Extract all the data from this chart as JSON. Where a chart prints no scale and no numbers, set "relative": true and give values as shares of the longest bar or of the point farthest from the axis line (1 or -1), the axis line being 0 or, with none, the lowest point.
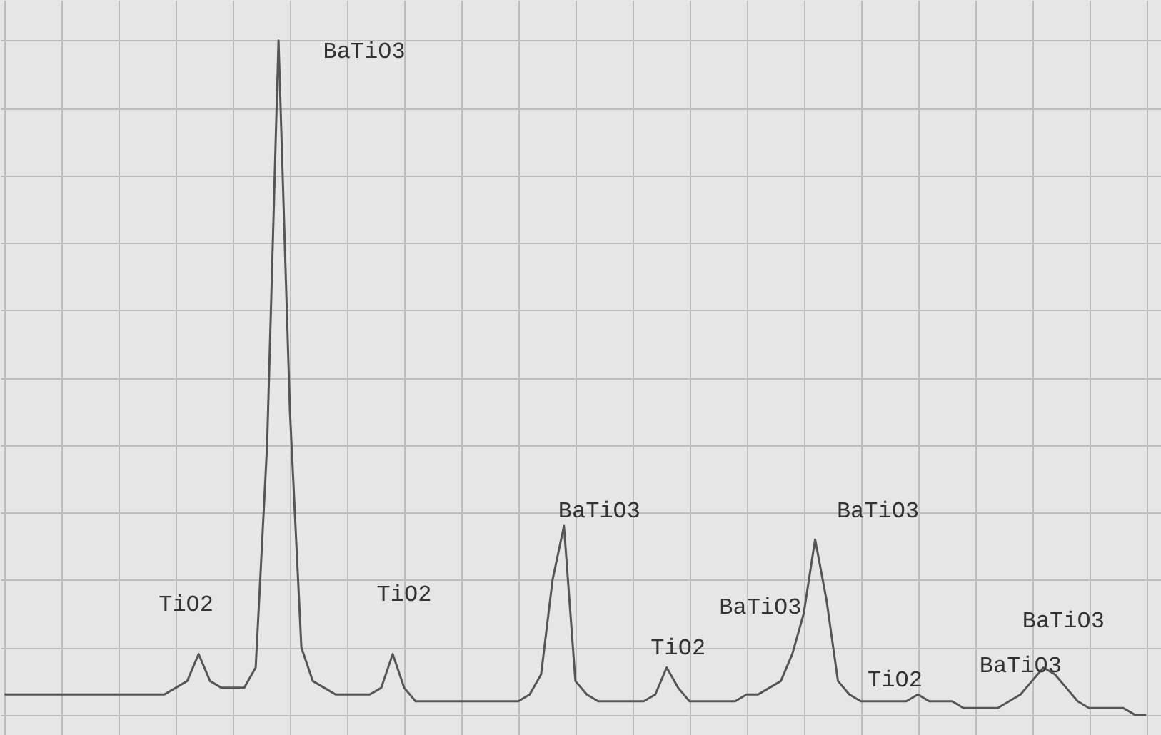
{
  "chart_data": {
    "type": "line",
    "relative": true,
    "grid": true,
    "color": "#555555",
    "categories": [
      null,
      null,
      null,
      null,
      null,
      null,
      null,
      null,
      null,
      null,
      null,
      null,
      null,
      null,
      null,
      null,
      null,
      null,
      null,
      null,
      null,
      null,
      null,
      null,
      null,
      null,
      null,
      null,
      null,
      null,
      null,
      null,
      null,
      null,
      null,
      null,
      null,
      null,
      null,
      null,
      null,
      null,
      null,
      null,
      null,
      null,
      null,
      null,
      null,
      null,
      null,
      null,
      null,
      null,
      null,
      null,
      null,
      null,
      null,
      null,
      null,
      null,
      null,
      null,
      null,
      null,
      null,
      null,
      null,
      null,
      null,
      null,
      null,
      null,
      null,
      null,
      null,
      null,
      null,
      null,
      null,
      null,
      null,
      null,
      null,
      null,
      null,
      null,
      null,
      null,
      null,
      null,
      null,
      null,
      null,
      null,
      null,
      null,
      null,
      null,
      null
    ],
    "values": [
      0.03,
      0.03,
      0.03,
      0.03,
      0.03,
      0.03,
      0.03,
      0.03,
      0.03,
      0.03,
      0.03,
      0.03,
      0.03,
      0.03,
      0.03,
      0.04,
      0.05,
      0.09,
      0.05,
      0.04,
      0.04,
      0.04,
      0.07,
      0.4,
      1,
      0.45,
      0.1,
      0.05,
      0.04,
      0.03,
      0.03,
      0.03,
      0.03,
      0.04,
      0.09,
      0.04,
      0.02,
      0.02,
      0.02,
      0.02,
      0.02,
      0.02,
      0.02,
      0.02,
      0.02,
      0.02,
      0.03,
      0.06,
      0.2,
      0.28,
      0.05,
      0.03,
      0.02,
      0.02,
      0.02,
      0.02,
      0.02,
      0.03,
      0.07,
      0.04,
      0.02,
      0.02,
      0.02,
      0.02,
      0.02,
      0.03,
      0.03,
      0.04,
      0.05,
      0.09,
      0.15,
      0.26,
      0.17,
      0.05,
      0.03,
      0.02,
      0.02,
      0.02,
      0.02,
      0.02,
      0.03,
      0.02,
      0.02,
      0.02,
      0.01,
      0.01,
      0.01,
      0.01,
      0.02,
      0.03,
      0.05,
      0.07,
      0.06,
      0.04,
      0.02,
      0.01,
      0.01,
      0.01,
      0.01,
      0,
      0
    ],
    "annotations": [
      "TiO2",
      "BaTiO3",
      "TiO2",
      "BaTiO3",
      "TiO2",
      "BaTiO3",
      "BaTiO3",
      "TiO2",
      "BaTiO3",
      "BaTiO3"
    ]
  }
}
